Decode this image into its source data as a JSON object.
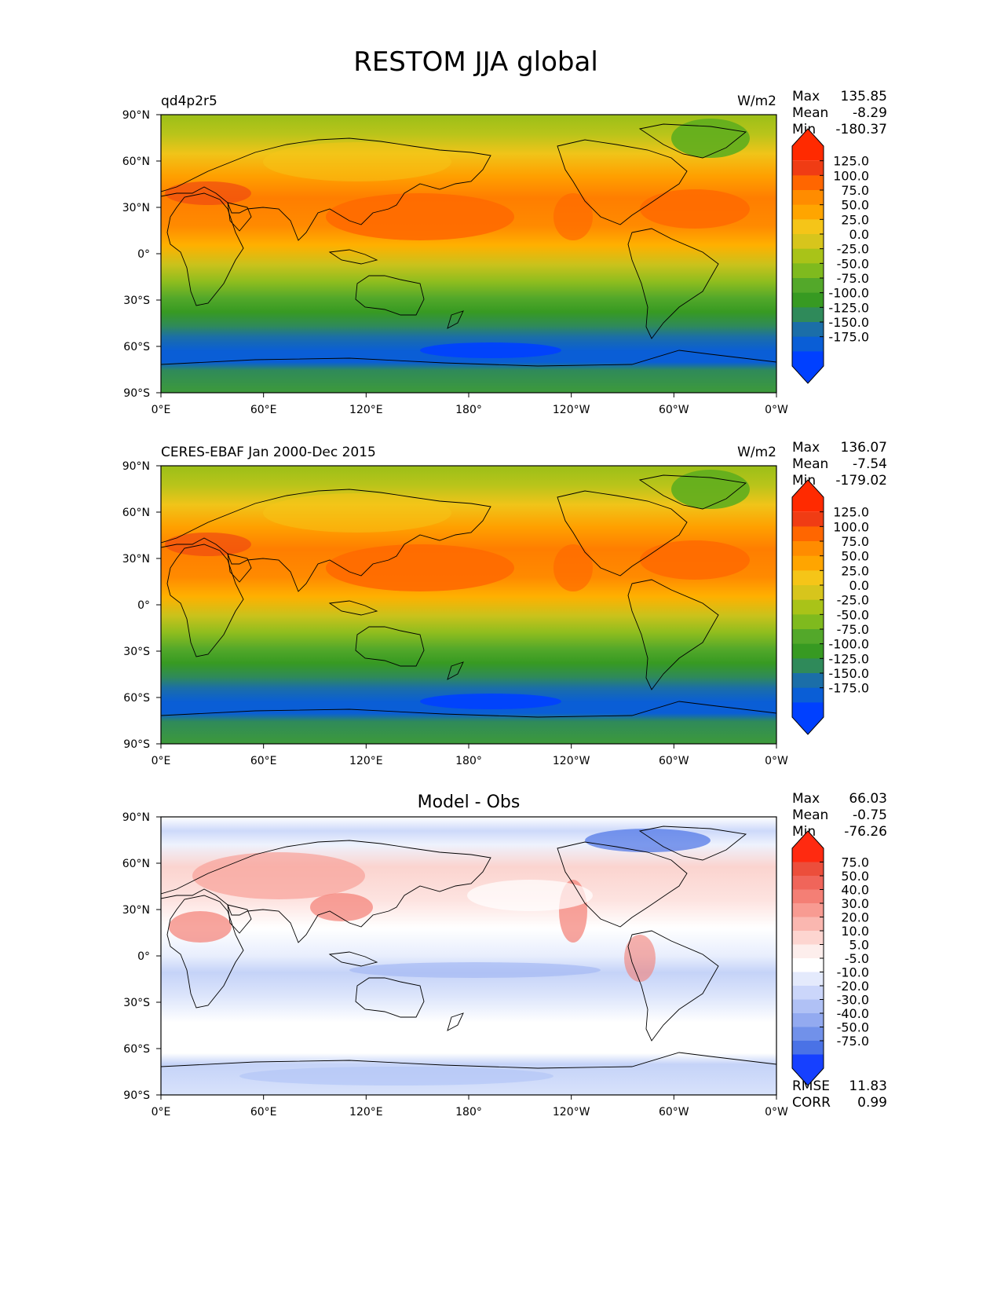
{
  "title": "RESTOM JJA global",
  "lat_labels": [
    "90°N",
    "60°N",
    "30°N",
    "0°",
    "30°S",
    "60°S",
    "90°S"
  ],
  "lon_labels": [
    "0°E",
    "60°E",
    "120°E",
    "180°",
    "120°W",
    "60°W",
    "0°W"
  ],
  "panels": [
    {
      "id": "model",
      "left_title": "qd4p2r5",
      "center_title": "",
      "units": "W/m2",
      "stats": [
        {
          "label": "Max",
          "value": "135.85"
        },
        {
          "label": "Mean",
          "value": "-8.29"
        },
        {
          "label": "Min",
          "value": "-180.37"
        }
      ],
      "footer_stats": [],
      "colorbar": {
        "labels": [
          "125.0",
          "100.0",
          "75.0",
          "50.0",
          "25.0",
          "0.0",
          "-25.0",
          "-50.0",
          "-75.0",
          "-100.0",
          "-125.0",
          "-150.0",
          "-175.0"
        ],
        "colors": [
          "#ff2a00",
          "#f03c14",
          "#ff6600",
          "#ff8c00",
          "#ffa500",
          "#f5c518",
          "#d7c51c",
          "#a9c318",
          "#7fba1e",
          "#53a82a",
          "#379a22",
          "#2f8a5a",
          "#1b6ea8",
          "#0a5ed6",
          "#0040ff"
        ]
      },
      "field": "full"
    },
    {
      "id": "obs",
      "left_title": "CERES-EBAF Jan 2000-Dec 2015",
      "center_title": "",
      "units": "W/m2",
      "stats": [
        {
          "label": "Max",
          "value": "136.07"
        },
        {
          "label": "Mean",
          "value": "-7.54"
        },
        {
          "label": "Min",
          "value": "-179.02"
        }
      ],
      "footer_stats": [],
      "colorbar": {
        "labels": [
          "125.0",
          "100.0",
          "75.0",
          "50.0",
          "25.0",
          "0.0",
          "-25.0",
          "-50.0",
          "-75.0",
          "-100.0",
          "-125.0",
          "-150.0",
          "-175.0"
        ],
        "colors": [
          "#ff2a00",
          "#f03c14",
          "#ff6600",
          "#ff8c00",
          "#ffa500",
          "#f5c518",
          "#d7c51c",
          "#a9c318",
          "#7fba1e",
          "#53a82a",
          "#379a22",
          "#2f8a5a",
          "#1b6ea8",
          "#0a5ed6",
          "#0040ff"
        ]
      },
      "field": "full"
    },
    {
      "id": "diff",
      "left_title": "",
      "center_title": "Model - Obs",
      "units": "",
      "stats": [
        {
          "label": "Max",
          "value": "66.03"
        },
        {
          "label": "Mean",
          "value": "-0.75"
        },
        {
          "label": "Min",
          "value": "-76.26"
        }
      ],
      "footer_stats": [
        {
          "label": "RMSE",
          "value": "11.83"
        },
        {
          "label": "CORR",
          "value": "0.99"
        }
      ],
      "colorbar": {
        "labels": [
          "75.0",
          "50.0",
          "40.0",
          "30.0",
          "20.0",
          "10.0",
          "5.0",
          "-5.0",
          "-10.0",
          "-20.0",
          "-30.0",
          "-40.0",
          "-50.0",
          "-75.0"
        ],
        "colors": [
          "#ff2a10",
          "#ec4e3b",
          "#f0655a",
          "#f47f75",
          "#f89b92",
          "#fab7b0",
          "#fdd5d0",
          "#fdeeec",
          "#ffffff",
          "#e4eafc",
          "#cbd6fa",
          "#b0c1f5",
          "#93aaf0",
          "#7191ea",
          "#4a72e6",
          "#1640ff"
        ]
      },
      "field": "diff"
    }
  ]
}
